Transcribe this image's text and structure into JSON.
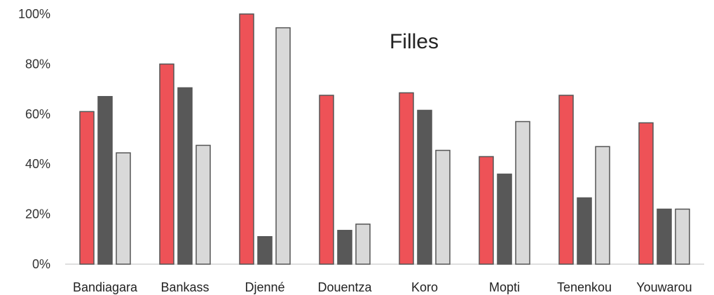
{
  "chart_data": {
    "type": "bar",
    "title": "Filles",
    "categories": [
      "Bandiagara",
      "Bankass",
      "Djenné",
      "Douentza",
      "Koro",
      "Mopti",
      "Tenenkou",
      "Youwarou"
    ],
    "series": [
      {
        "color": "#ee5257",
        "values": [
          61,
          80,
          100,
          67.5,
          68.5,
          43,
          67.5,
          56.5
        ]
      },
      {
        "color": "#585858",
        "values": [
          67,
          70.5,
          11,
          13.5,
          61.5,
          36,
          26.5,
          22
        ]
      },
      {
        "color": "#d9d9d9",
        "values": [
          44.5,
          47.5,
          94.5,
          16,
          45.5,
          57,
          47,
          22
        ]
      }
    ],
    "ylim": [
      0,
      100
    ],
    "yticks": [
      "0%",
      "20%",
      "40%",
      "60%",
      "80%",
      "100%"
    ],
    "grid": false,
    "legend": "none"
  }
}
